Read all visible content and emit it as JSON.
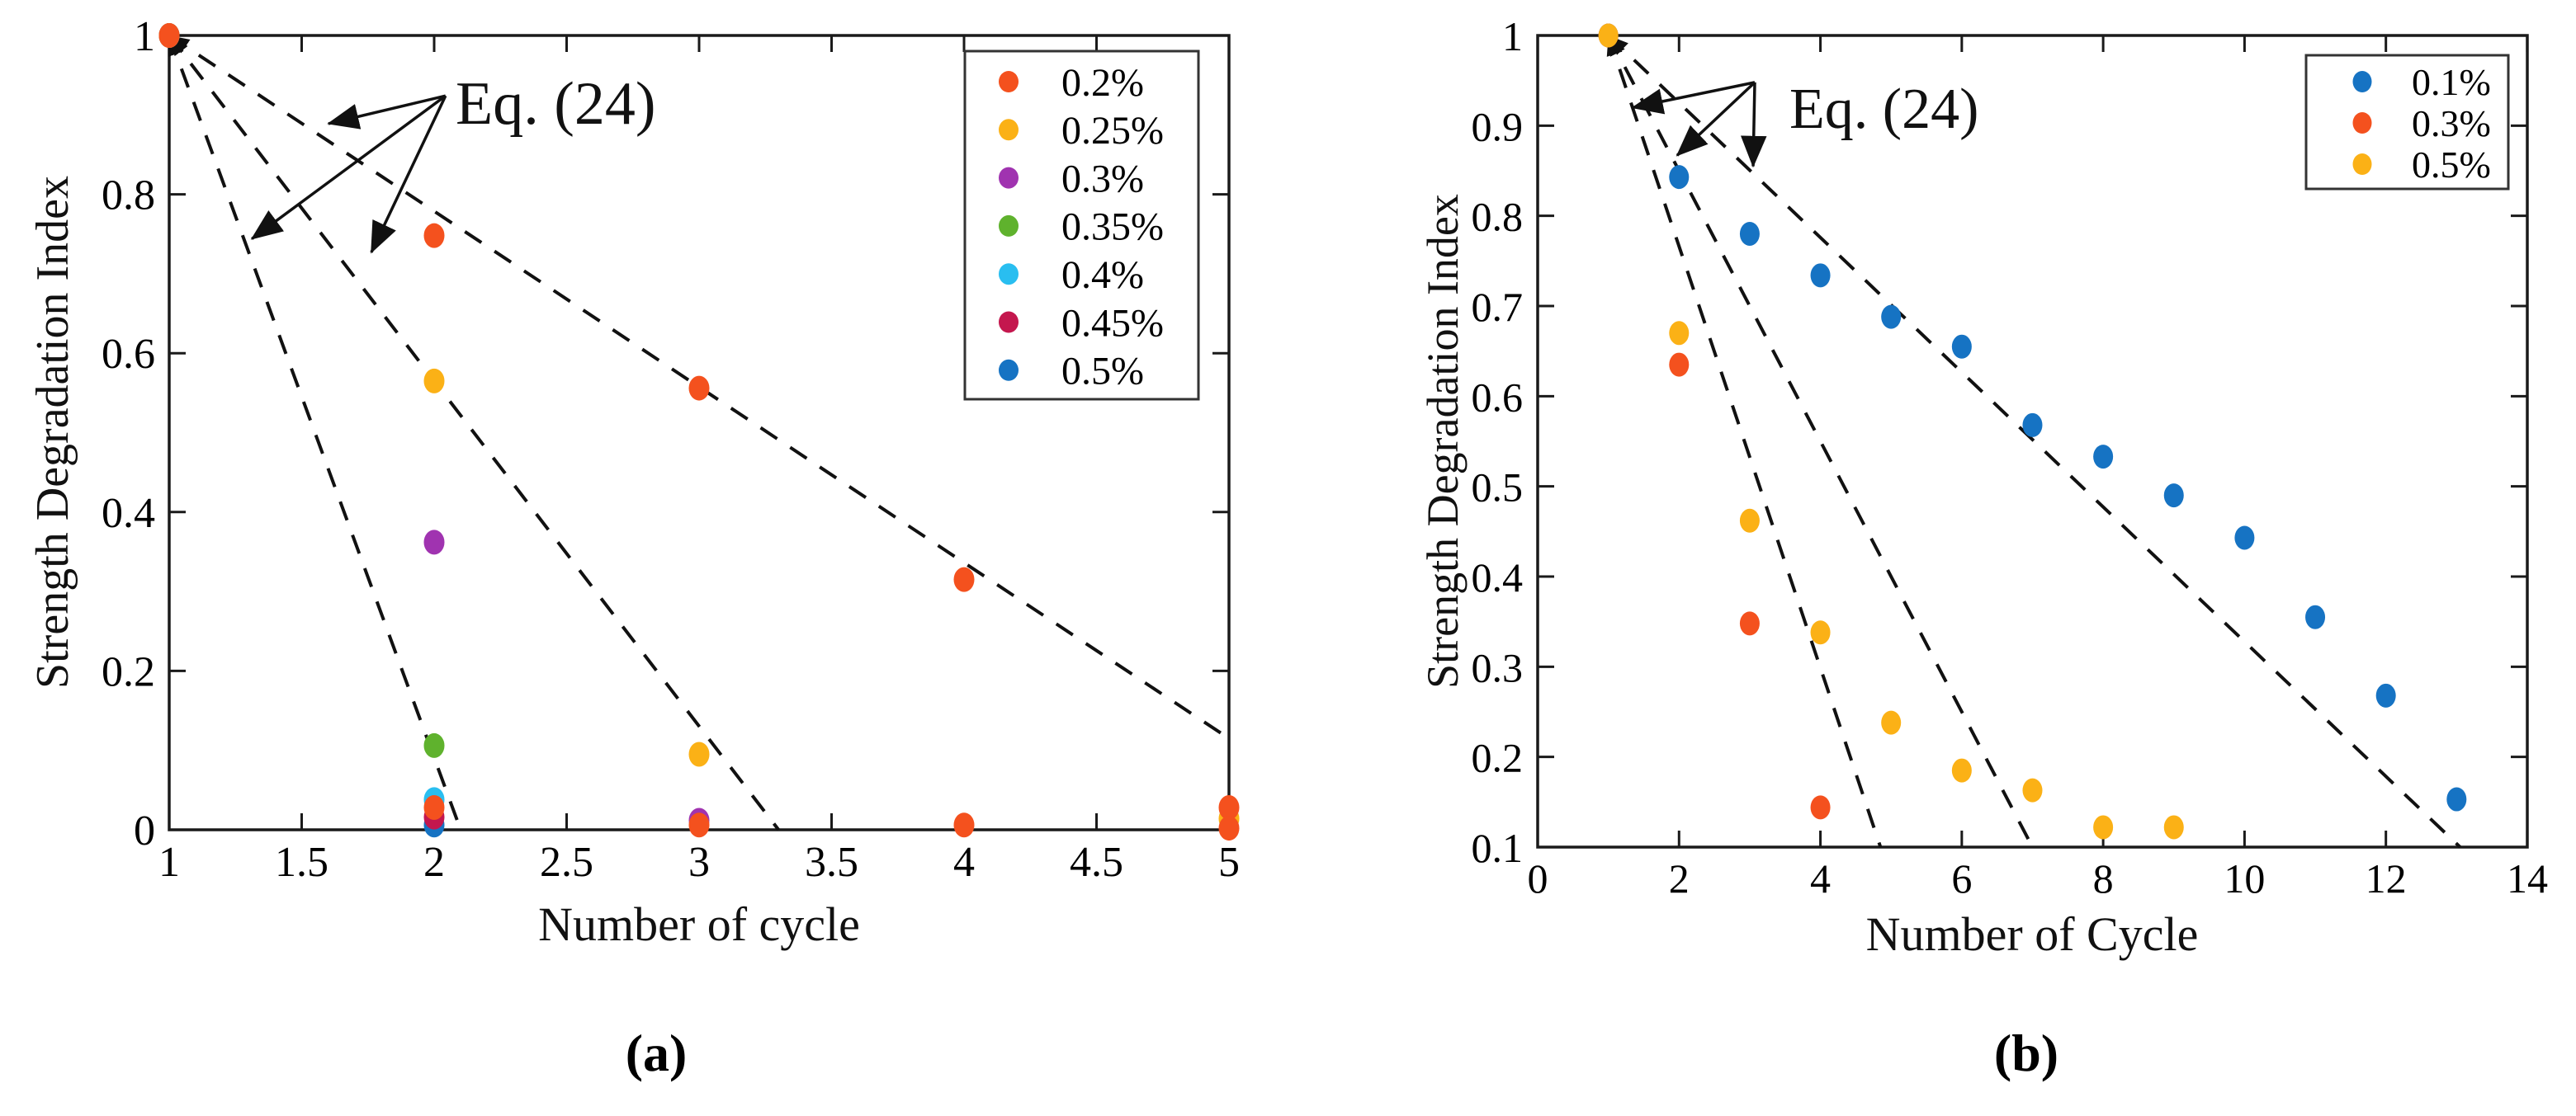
{
  "figure": {
    "background": "#ffffff",
    "line_color": "#111111",
    "description": "Strength degradation index versus number of cycles, two scatter subplots with dashed Eq. (24) fit lines"
  },
  "chart_data": [
    {
      "id": "a",
      "type": "scatter",
      "caption": "(a)",
      "xlabel": "Number of cycle",
      "ylabel": "Strength Degradation Index",
      "xlim": [
        1,
        5
      ],
      "ylim": [
        0,
        1
      ],
      "grid": false,
      "legend_position": "top-right",
      "x_ticks": {
        "values": [
          1,
          1.5,
          2,
          2.5,
          3,
          3.5,
          4,
          4.5,
          5
        ],
        "labels": [
          "1",
          "1.5",
          "2",
          "2.5",
          "3",
          "3.5",
          "4",
          "4.5",
          "5"
        ]
      },
      "y_ticks": {
        "values": [
          0,
          0.2,
          0.4,
          0.6,
          0.8,
          1
        ],
        "labels": [
          "0",
          "0.2",
          "0.4",
          "0.6",
          "0.8",
          "1"
        ]
      },
      "series": [
        {
          "label": "0.2%",
          "color": "#F4511E",
          "points": [
            [
              1,
              1
            ],
            [
              2,
              0.748
            ],
            [
              3,
              0.556
            ],
            [
              4,
              0.315
            ],
            [
              5,
              0.028
            ]
          ]
        },
        {
          "label": "0.25%",
          "color": "#FBB116",
          "points": [
            [
              1,
              1
            ],
            [
              2,
              0.565
            ],
            [
              3,
              0.095
            ],
            [
              5,
              0.014
            ]
          ]
        },
        {
          "label": "0.3%",
          "color": "#A033B0",
          "points": [
            [
              1,
              1
            ],
            [
              2,
              0.362
            ],
            [
              3,
              0.012
            ]
          ]
        },
        {
          "label": "0.35%",
          "color": "#5FB22D",
          "points": [
            [
              1,
              1
            ],
            [
              2,
              0.106
            ]
          ]
        },
        {
          "label": "0.4%",
          "color": "#29BEF0",
          "points": [
            [
              1,
              1
            ],
            [
              2,
              0.038
            ]
          ]
        },
        {
          "label": "0.45%",
          "color": "#C4174E",
          "points": [
            [
              1,
              1
            ],
            [
              2,
              0.016
            ]
          ]
        },
        {
          "label": "0.5%",
          "color": "#1673C3",
          "points": [
            [
              1,
              1
            ],
            [
              2,
              0.006
            ]
          ]
        }
      ],
      "extra_points": {
        "color": "#F4511E",
        "points": [
          [
            2,
            0.028
          ],
          [
            3,
            0.006
          ],
          [
            4,
            0.006
          ],
          [
            5,
            0.002
          ]
        ]
      },
      "fit_lines": [
        {
          "from": [
            1,
            1
          ],
          "to": [
            2.1,
            0
          ]
        },
        {
          "from": [
            1,
            1
          ],
          "to": [
            3.3,
            0
          ]
        },
        {
          "from": [
            1,
            1
          ],
          "to": [
            5,
            0.115
          ]
        }
      ],
      "legend_entries": [
        "0.2%",
        "0.25%",
        "0.3%",
        "0.35%",
        "0.4%",
        "0.45%",
        "0.5%"
      ],
      "annotation": {
        "text": "Eq. (24)",
        "arrows": [
          {
            "from": [
              2.043,
              0.924
            ],
            "to": [
              1.601,
              0.889
            ]
          },
          {
            "from": [
              2.043,
              0.924
            ],
            "to": [
              1.312,
              0.744
            ]
          },
          {
            "from": [
              2.043,
              0.924
            ],
            "to": [
              1.763,
              0.727
            ]
          }
        ]
      }
    },
    {
      "id": "b",
      "type": "scatter",
      "caption": "(b)",
      "xlabel": "Number of Cycle",
      "ylabel": "Strength Degradation Index",
      "xlim": [
        0,
        14
      ],
      "ylim": [
        0.1,
        1
      ],
      "grid": false,
      "legend_position": "top-right",
      "x_ticks": {
        "values": [
          0,
          2,
          4,
          6,
          8,
          10,
          12,
          14
        ],
        "labels": [
          "0",
          "2",
          "4",
          "6",
          "8",
          "10",
          "12",
          "14"
        ]
      },
      "y_ticks": {
        "values": [
          0.1,
          0.2,
          0.3,
          0.4,
          0.5,
          0.6,
          0.7,
          0.8,
          0.9,
          1
        ],
        "labels": [
          "0.1",
          "0.2",
          "0.3",
          "0.4",
          "0.5",
          "0.6",
          "0.7",
          "0.8",
          "0.9",
          "1"
        ]
      },
      "series": [
        {
          "label": "0.1%",
          "color": "#1673C3",
          "points": [
            [
              1,
              1
            ],
            [
              2,
              0.843
            ],
            [
              3,
              0.78
            ],
            [
              4,
              0.734
            ],
            [
              5,
              0.688
            ],
            [
              6,
              0.655
            ],
            [
              7,
              0.568
            ],
            [
              8,
              0.533
            ],
            [
              9,
              0.49
            ],
            [
              10,
              0.443
            ],
            [
              11,
              0.355
            ],
            [
              12,
              0.268
            ],
            [
              13,
              0.153
            ]
          ]
        },
        {
          "label": "0.3%",
          "color": "#F4511E",
          "points": [
            [
              1,
              1
            ],
            [
              2,
              0.635
            ],
            [
              3,
              0.348
            ],
            [
              4,
              0.144
            ]
          ]
        },
        {
          "label": "0.5%",
          "color": "#FBB116",
          "points": [
            [
              1,
              1
            ],
            [
              2,
              0.67
            ],
            [
              3,
              0.462
            ],
            [
              4,
              0.338
            ],
            [
              5,
              0.238
            ],
            [
              6,
              0.185
            ],
            [
              7,
              0.163
            ],
            [
              8,
              0.122
            ],
            [
              9,
              0.122
            ]
          ]
        }
      ],
      "extra_points": null,
      "fit_lines": [
        {
          "from": [
            1,
            1
          ],
          "to": [
            4.85,
            0.1
          ]
        },
        {
          "from": [
            1,
            1
          ],
          "to": [
            7.0,
            0.1
          ]
        },
        {
          "from": [
            1,
            1
          ],
          "to": [
            13.05,
            0.1
          ]
        }
      ],
      "legend_entries": [
        "0.1%",
        "0.3%",
        "0.5%"
      ],
      "annotation": {
        "text": "Eq. (24)",
        "arrows": [
          {
            "from": [
              3.071,
              0.948
            ],
            "to": [
              1.343,
              0.92
            ]
          },
          {
            "from": [
              3.071,
              0.948
            ],
            "to": [
              1.973,
              0.867
            ]
          },
          {
            "from": [
              3.071,
              0.948
            ],
            "to": [
              3.048,
              0.855
            ]
          }
        ]
      }
    }
  ]
}
